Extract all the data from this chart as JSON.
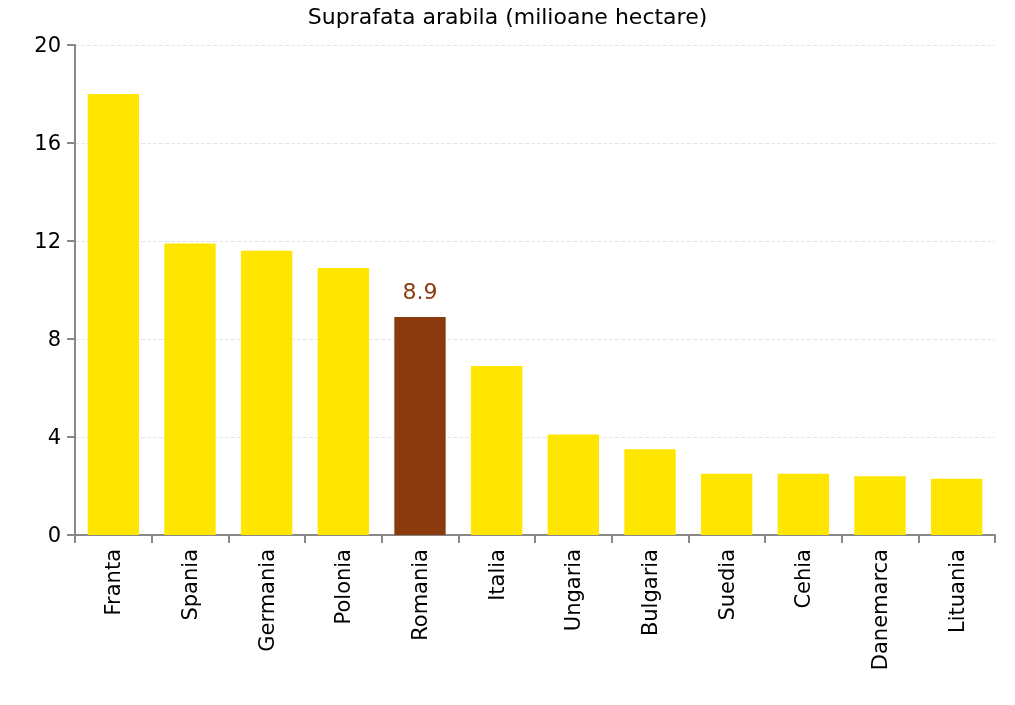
{
  "chart_data": {
    "type": "bar",
    "title": "Suprafata arabila (milioane hectare)",
    "categories": [
      "Franta",
      "Spania",
      "Germania",
      "Polonia",
      "Romania",
      "Italia",
      "Ungaria",
      "Bulgaria",
      "Suedia",
      "Cehia",
      "Danemarca",
      "Lituania"
    ],
    "values": [
      18.0,
      11.9,
      11.6,
      10.9,
      8.9,
      6.9,
      4.1,
      3.5,
      2.5,
      2.5,
      2.4,
      2.3
    ],
    "colors": [
      "#ffe600",
      "#ffe600",
      "#ffe600",
      "#ffe600",
      "#8b3a0e",
      "#ffe600",
      "#ffe600",
      "#ffe600",
      "#ffe600",
      "#ffe600",
      "#ffe600",
      "#ffe600"
    ],
    "value_labels": [
      null,
      null,
      null,
      null,
      "8.9",
      null,
      null,
      null,
      null,
      null,
      null,
      null
    ],
    "ylim": [
      0,
      20
    ],
    "yticks": [
      0,
      4,
      8,
      12,
      16,
      20
    ],
    "grid": "y"
  }
}
